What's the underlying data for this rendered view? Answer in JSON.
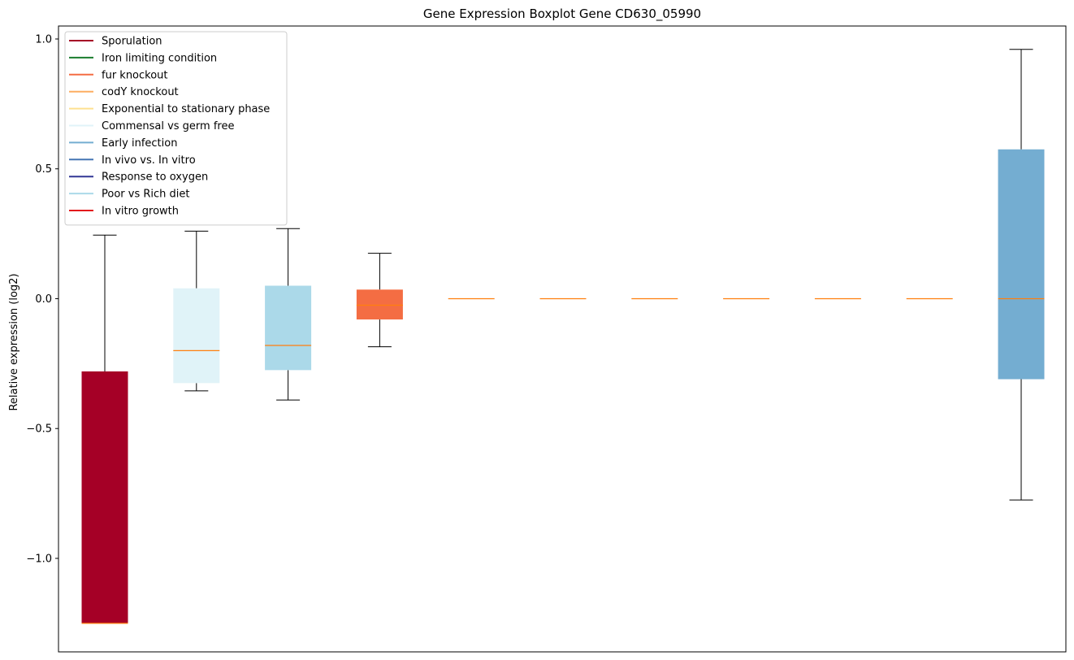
{
  "chart_data": {
    "type": "box",
    "title": "Gene Expression Boxplot Gene CD630_05990",
    "xlabel": "",
    "ylabel": "Relative expression (log2)",
    "ylim": [
      -1.36,
      1.05
    ],
    "yticks": [
      -1.0,
      -0.5,
      0.0,
      0.5,
      1.0
    ],
    "ytick_labels": [
      "−1.0",
      "−0.5",
      "0.0",
      "0.5",
      "1.0"
    ],
    "legend_position": "upper-left",
    "legend": [
      {
        "label": "Sporulation",
        "color": "#a50026"
      },
      {
        "label": "Iron limiting condition",
        "color": "#1a7d2e"
      },
      {
        "label": "fur knockout",
        "color": "#f46d43"
      },
      {
        "label": "codY knockout",
        "color": "#fdae61"
      },
      {
        "label": "Exponential to stationary phase",
        "color": "#fee090"
      },
      {
        "label": "Commensal vs germ free",
        "color": "#e0f3f8"
      },
      {
        "label": "Early infection",
        "color": "#74add1"
      },
      {
        "label": "In vivo vs. In vitro",
        "color": "#4575b4"
      },
      {
        "label": "Response to oxygen",
        "color": "#313695"
      },
      {
        "label": "Poor vs Rich diet",
        "color": "#abd9e9"
      },
      {
        "label": "In vitro growth",
        "color": "#e31a1c"
      }
    ],
    "boxes": [
      {
        "color": "#a50026",
        "whisker_low": -1.25,
        "q1": -1.25,
        "median": -1.25,
        "q3": -0.28,
        "whisker_high": 0.245
      },
      {
        "color": "#e0f3f8",
        "whisker_low": -0.355,
        "q1": -0.325,
        "median": -0.2,
        "q3": 0.04,
        "whisker_high": 0.26
      },
      {
        "color": "#abd9e9",
        "whisker_low": -0.39,
        "q1": -0.275,
        "median": -0.18,
        "q3": 0.05,
        "whisker_high": 0.27
      },
      {
        "color": "#f46d43",
        "whisker_low": -0.185,
        "q1": -0.08,
        "median": -0.025,
        "q3": 0.035,
        "whisker_high": 0.175
      },
      {
        "color": "#fdae61",
        "whisker_low": 0.0,
        "q1": 0.0,
        "median": 0.0,
        "q3": 0.0,
        "whisker_high": 0.0
      },
      {
        "color": "#fdae61",
        "whisker_low": 0.0,
        "q1": 0.0,
        "median": 0.0,
        "q3": 0.0,
        "whisker_high": 0.0
      },
      {
        "color": "#fdae61",
        "whisker_low": 0.0,
        "q1": 0.0,
        "median": 0.0,
        "q3": 0.0,
        "whisker_high": 0.0
      },
      {
        "color": "#fdae61",
        "whisker_low": 0.0,
        "q1": 0.0,
        "median": 0.0,
        "q3": 0.0,
        "whisker_high": 0.0
      },
      {
        "color": "#fdae61",
        "whisker_low": 0.0,
        "q1": 0.0,
        "median": 0.0,
        "q3": 0.0,
        "whisker_high": 0.0
      },
      {
        "color": "#fdae61",
        "whisker_low": 0.0,
        "q1": 0.0,
        "median": 0.0,
        "q3": 0.0,
        "whisker_high": 0.0
      },
      {
        "color": "#74add1",
        "whisker_low": -0.775,
        "q1": -0.31,
        "median": 0.0,
        "q3": 0.575,
        "whisker_high": 0.96
      }
    ],
    "median_color": "#ff7f0e"
  }
}
